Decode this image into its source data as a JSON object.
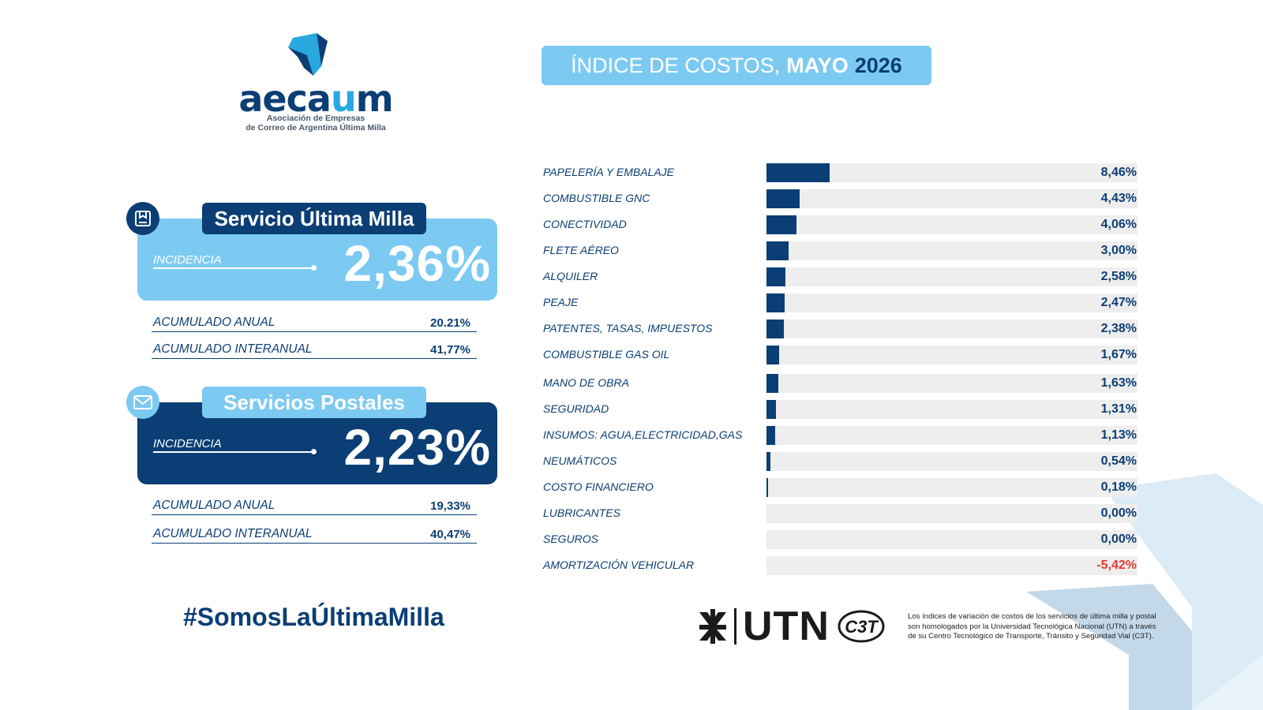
{
  "colors": {
    "dark_blue": "#0b3e74",
    "light_blue": "#7ccaf2",
    "negative": "#e53935",
    "track": "#eeeeee"
  },
  "logo": {
    "word_prefix": "aeca",
    "word_highlight": "u",
    "word_suffix": "m",
    "subtitle_line1": "Asociación de Empresas",
    "subtitle_line2": "de Correo de Argentina Última Milla"
  },
  "header": {
    "prefix": "ÍNDICE DE COSTOS,",
    "month": "MAYO",
    "year": "2026"
  },
  "ultima_milla": {
    "icon": "box-icon",
    "title": "Servicio Última Milla",
    "incidence_label": "INCIDENCIA",
    "incidence_value": "2,36%",
    "acc_annual_label": "ACUMULADO ANUAL",
    "acc_annual_value": "20.21%",
    "acc_interannual_label": "ACUMULADO INTERANUAL",
    "acc_interannual_value": "41,77%"
  },
  "postales": {
    "icon": "envelope-icon",
    "title": "Servicios Postales",
    "incidence_label": "INCIDENCIA",
    "incidence_value": "2,23%",
    "acc_annual_label": "ACUMULADO ANUAL",
    "acc_annual_value": "19,33%",
    "acc_interannual_label": "ACUMULADO INTERANUAL",
    "acc_interannual_value": "40,47%"
  },
  "hashtag": "#SomosLaÚltimaMilla",
  "chart_data": {
    "type": "bar",
    "orientation": "horizontal",
    "categories": [
      "PAPELERÍA Y EMBALAJE",
      "COMBUSTIBLE GNC",
      "CONECTIVIDAD",
      "FLETE AÉREO",
      "ALQUILER",
      "PEAJE",
      "PATENTES, TASAS, IMPUESTOS",
      "COMBUSTIBLE GAS OIL",
      "MANO DE OBRA",
      "SEGURIDAD",
      "INSUMOS: AGUA,ELECTRICIDAD,GAS",
      "NEUMÁTICOS",
      "COSTO FINANCIERO",
      "LUBRICANTES",
      "SEGUROS",
      "AMORTIZACIÓN VEHICULAR"
    ],
    "values": [
      8.46,
      4.43,
      4.06,
      3.0,
      2.58,
      2.47,
      2.38,
      1.67,
      1.63,
      1.31,
      1.13,
      0.54,
      0.18,
      0.0,
      0.0,
      -5.42
    ],
    "value_labels": [
      "8,46%",
      "4,43%",
      "4,06%",
      "3,00%",
      "2,58%",
      "2,47%",
      "2,38%",
      "1,67%",
      "1,63%",
      "1,31%",
      "1,13%",
      "0,54%",
      "0,18%",
      "0,00%",
      "0,00%",
      "-5,42%"
    ],
    "xlim": [
      0,
      50
    ],
    "grid": false,
    "title": "",
    "xlabel": "",
    "ylabel": ""
  },
  "footer": {
    "utn_text": "UTN",
    "c3t_text": "C3T",
    "footnote_line1": "Los índices de variación de costos de los servicios de última milla y postal",
    "footnote_line2": "son homologados por la Universidad Tecnológica Nacional (UTN) a través",
    "footnote_line3": "de su Centro Tecnológico de Transporte, Tránsito y Seguridad Vial (C3T)."
  }
}
